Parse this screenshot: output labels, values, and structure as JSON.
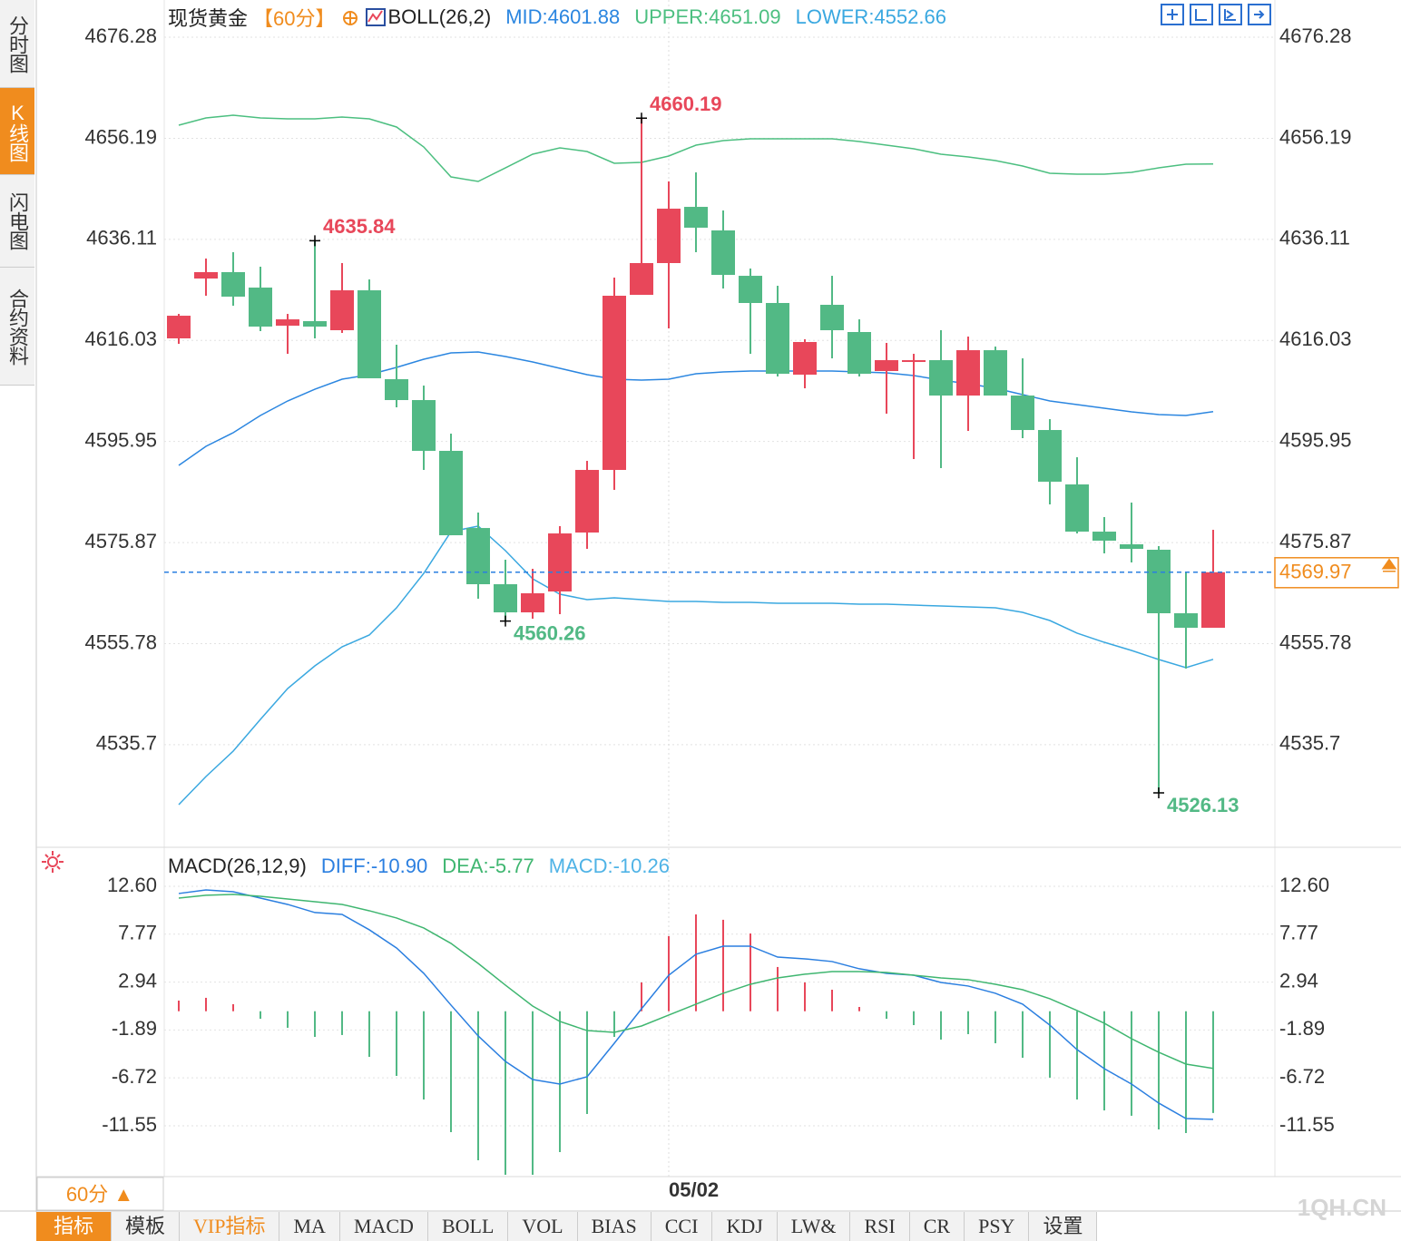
{
  "ui": {
    "side_tabs": [
      {
        "label": "分时图"
      },
      {
        "label": "K线图",
        "active": true
      },
      {
        "label": "闪电图"
      },
      {
        "label": "合约资料"
      }
    ],
    "instrument": "现货黄金",
    "period": "【60分】",
    "period_selector": "60分 ▲",
    "bottom_tabs": [
      {
        "label": "指标",
        "active": true
      },
      {
        "label": "模板"
      },
      {
        "label": "VIP指标",
        "highlight": true
      },
      {
        "label": "MA"
      },
      {
        "label": "MACD"
      },
      {
        "label": "BOLL"
      },
      {
        "label": "VOL"
      },
      {
        "label": "BIAS"
      },
      {
        "label": "CCI"
      },
      {
        "label": "KDJ"
      },
      {
        "label": "LW&"
      },
      {
        "label": "RSI"
      },
      {
        "label": "CR"
      },
      {
        "label": "PSY"
      },
      {
        "label": "设置"
      }
    ],
    "watermark": "1QH.CN"
  },
  "chart_data": [
    {
      "type": "candlestick",
      "indicator": "BOLL(26,2)",
      "up_color": "#e8475a",
      "down_color": "#52b985",
      "last_price_color": "#f08c1e",
      "last_price_line_color": "#2a7fe0",
      "categories": [
        null,
        null,
        null,
        null,
        null,
        null,
        null,
        null,
        null,
        null,
        null,
        null,
        null,
        null,
        null,
        null,
        null,
        null,
        "05/02",
        null,
        null,
        null,
        null,
        null,
        null,
        null,
        null,
        null,
        null,
        null,
        null,
        null,
        null,
        null,
        null,
        null,
        null,
        null,
        null
      ],
      "open": [
        4616.44,
        4628.33,
        4629.6,
        4626.53,
        4618.96,
        4619.86,
        4618.06,
        4625.99,
        4608.33,
        4604.18,
        4594.09,
        4578.76,
        4567.59,
        4562.0,
        4566.15,
        4577.86,
        4590.3,
        4625.09,
        4631.4,
        4642.57,
        4637.89,
        4628.87,
        4623.47,
        4609.23,
        4623.11,
        4617.7,
        4609.95,
        4611.93,
        4612.11,
        4605.08,
        4614.09,
        4605.08,
        4598.23,
        4587.42,
        4578.04,
        4575.52,
        4574.44,
        4561.82,
        4558.94
      ],
      "high": [
        4621.3,
        4632.3,
        4633.56,
        4630.68,
        4621.3,
        4635.84,
        4631.4,
        4628.15,
        4615.18,
        4607.06,
        4597.51,
        4581.83,
        4572.46,
        4570.65,
        4579.13,
        4592.1,
        4628.51,
        4660.19,
        4647.62,
        4649.42,
        4641.85,
        4630.32,
        4626.89,
        4616.26,
        4628.87,
        4620.22,
        4615.54,
        4613.37,
        4618.06,
        4616.8,
        4614.81,
        4612.47,
        4600.39,
        4592.82,
        4580.93,
        4583.81,
        4575.16,
        4570.11,
        4578.4
      ],
      "low": [
        4615.36,
        4624.91,
        4622.93,
        4617.88,
        4613.37,
        4616.44,
        4617.52,
        4608.51,
        4602.74,
        4590.3,
        4577.32,
        4564.71,
        4560.26,
        4560.74,
        4561.64,
        4574.62,
        4586.34,
        4625.09,
        4618.42,
        4633.56,
        4626.35,
        4613.37,
        4608.87,
        4606.52,
        4612.47,
        4608.87,
        4601.48,
        4592.46,
        4590.66,
        4598.05,
        4605.08,
        4596.61,
        4583.45,
        4577.68,
        4573.72,
        4571.92,
        4526.13,
        4550.83,
        4558.94
      ],
      "close": [
        4620.94,
        4629.6,
        4624.73,
        4618.78,
        4620.22,
        4618.78,
        4625.99,
        4608.51,
        4604.18,
        4594.09,
        4577.32,
        4567.59,
        4562.0,
        4565.79,
        4577.68,
        4590.3,
        4624.91,
        4631.4,
        4642.21,
        4638.43,
        4629.05,
        4623.47,
        4609.41,
        4615.72,
        4618.06,
        4609.41,
        4612.11,
        4612.11,
        4605.08,
        4614.09,
        4605.08,
        4598.23,
        4587.96,
        4578.04,
        4576.24,
        4574.62,
        4561.82,
        4558.94,
        4569.97
      ],
      "series": [
        {
          "name": "MID:4601.88",
          "color": "#2b86e0",
          "values": [
            4591.2,
            4594.99,
            4597.69,
            4601.12,
            4604.0,
            4606.34,
            4608.33,
            4609.23,
            4610.67,
            4612.29,
            4613.55,
            4613.73,
            4612.83,
            4611.75,
            4610.49,
            4609.23,
            4608.33,
            4608.15,
            4608.33,
            4609.41,
            4609.77,
            4609.95,
            4609.95,
            4609.95,
            4609.95,
            4609.77,
            4609.59,
            4609.05,
            4608.15,
            4607.42,
            4606.52,
            4605.26,
            4604.0,
            4603.28,
            4602.56,
            4601.84,
            4601.3,
            4601.12,
            4601.88
          ]
        },
        {
          "name": "UPPER:4651.09",
          "color": "#4cbf80",
          "values": [
            4658.8,
            4660.24,
            4660.78,
            4660.24,
            4660.06,
            4660.06,
            4660.42,
            4660.06,
            4658.44,
            4654.47,
            4648.52,
            4647.62,
            4650.32,
            4653.03,
            4654.29,
            4653.57,
            4651.23,
            4651.41,
            4652.67,
            4654.83,
            4655.73,
            4656.09,
            4656.09,
            4656.09,
            4656.09,
            4655.55,
            4654.83,
            4654.11,
            4653.03,
            4652.49,
            4651.77,
            4650.68,
            4649.24,
            4649.06,
            4649.06,
            4649.42,
            4650.32,
            4651.04,
            4651.09
          ]
        },
        {
          "name": "LOWER:4552.66",
          "color": "#3aa8e0",
          "values": [
            4523.79,
            4529.38,
            4534.42,
            4540.73,
            4546.86,
            4551.37,
            4555.15,
            4557.5,
            4562.9,
            4569.75,
            4578.04,
            4579.13,
            4574.26,
            4568.67,
            4565.61,
            4564.52,
            4564.89,
            4564.52,
            4564.16,
            4564.16,
            4563.98,
            4563.98,
            4563.8,
            4563.8,
            4563.8,
            4563.62,
            4563.62,
            4563.44,
            4563.26,
            4563.08,
            4562.9,
            4562.0,
            4560.38,
            4557.86,
            4556.05,
            4554.43,
            4552.63,
            4551.01,
            4552.66
          ]
        }
      ],
      "ylim": [
        4516.04,
        4681.87
      ],
      "yticks": [
        4676.28,
        4656.19,
        4636.11,
        4616.03,
        4595.95,
        4575.87,
        4555.78,
        4535.7
      ],
      "grid": true
    },
    {
      "type": "combo",
      "title": "MACD(26,12,9)",
      "series": [
        {
          "name": "DIFF:-10.90",
          "type": "line",
          "color": "#2b7fe0",
          "values": [
            11.87,
            12.23,
            12.05,
            11.41,
            10.77,
            9.95,
            9.76,
            8.21,
            6.38,
            3.82,
            0.62,
            -2.49,
            -5.06,
            -6.89,
            -7.34,
            -6.61,
            -3.23,
            0.25,
            3.63,
            5.74,
            6.56,
            6.56,
            5.46,
            5.28,
            5.01,
            4.28,
            3.82,
            3.63,
            2.9,
            2.54,
            1.81,
            0.71,
            -1.4,
            -3.87,
            -5.79,
            -7.34,
            -9.26,
            -10.82,
            -10.9
          ]
        },
        {
          "name": "DEA:-5.77",
          "type": "line",
          "color": "#3fb670",
          "values": [
            11.41,
            11.69,
            11.78,
            11.59,
            11.32,
            11.04,
            10.77,
            10.13,
            9.4,
            8.39,
            6.84,
            4.82,
            2.63,
            0.52,
            -1.03,
            -1.95,
            -2.13,
            -1.49,
            -0.39,
            0.71,
            1.81,
            2.72,
            3.36,
            3.73,
            4.0,
            4.0,
            3.91,
            3.63,
            3.36,
            3.18,
            2.72,
            2.17,
            1.26,
            0.07,
            -1.21,
            -2.77,
            -4.14,
            -5.33,
            -5.77
          ]
        },
        {
          "name": "MACD:-10.26",
          "type": "bar",
          "color": "#4fb3e6",
          "up_color": "#e8475a",
          "down_color": "#52b985",
          "values": [
            1.07,
            1.35,
            0.71,
            -0.76,
            -1.67,
            -2.59,
            -2.4,
            -4.6,
            -6.52,
            -8.9,
            -12.19,
            -15.03,
            -16.49,
            -16.49,
            -14.2,
            -10.36,
            -2.59,
            2.9,
            7.57,
            9.76,
            9.22,
            7.84,
            4.46,
            2.9,
            2.17,
            0.43,
            -0.76,
            -1.4,
            -2.86,
            -2.31,
            -3.23,
            -4.69,
            -6.7,
            -8.9,
            -10.0,
            -10.54,
            -11.92,
            -12.28,
            -10.26
          ]
        }
      ],
      "ylim": [
        -16.49,
        15.98
      ],
      "yticks": [
        {
          "value": 12.6,
          "label": "12.60"
        },
        7.77,
        2.94,
        -1.89,
        -6.72,
        -11.55
      ],
      "grid": true
    }
  ]
}
